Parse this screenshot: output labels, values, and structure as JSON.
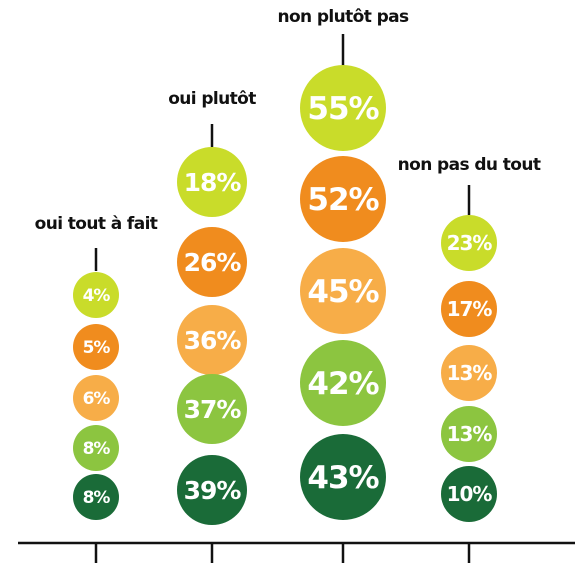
{
  "chart_data": {
    "type": "bubble",
    "title": "",
    "categories": [
      "oui tout à fait",
      "oui plutôt",
      "non plutôt pas",
      "non pas du tout"
    ],
    "series": [
      {
        "values": [
          4,
          18,
          55,
          23
        ],
        "labels": [
          "4%",
          "18%",
          "55%",
          "23%"
        ]
      },
      {
        "values": [
          5,
          26,
          52,
          17
        ],
        "labels": [
          "5%",
          "26%",
          "52%",
          "17%"
        ]
      },
      {
        "values": [
          6,
          36,
          45,
          13
        ],
        "labels": [
          "6%",
          "36%",
          "45%",
          "13%"
        ]
      },
      {
        "values": [
          8,
          37,
          42,
          13
        ],
        "labels": [
          "8%",
          "37%",
          "42%",
          "13%"
        ]
      },
      {
        "values": [
          8,
          39,
          43,
          10
        ],
        "labels": [
          "8%",
          "39%",
          "43%",
          "10%"
        ]
      }
    ],
    "colors": [
      "#c9dc2a",
      "#f08c1e",
      "#f7ad48",
      "#8cc540",
      "#1a6b38"
    ],
    "legend": "none",
    "grid": false
  }
}
